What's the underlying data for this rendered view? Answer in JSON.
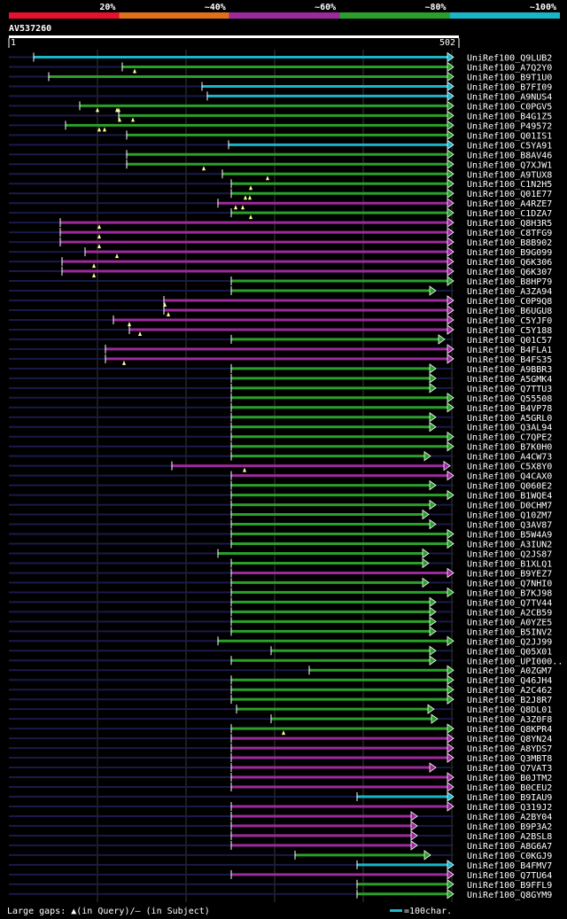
{
  "query": {
    "id": "AV537260",
    "length": 502,
    "start_label": "1",
    "end_label": "502"
  },
  "identity_scale": [
    {
      "label": "20%",
      "color": "#e8112d"
    },
    {
      "label": "~40%",
      "color": "#e0701e"
    },
    {
      "label": "~60%",
      "color": "#9c2a9c"
    },
    {
      "label": "~80%",
      "color": "#2aa02a"
    },
    {
      "label": "~100%",
      "color": "#1ab5c8"
    }
  ],
  "colors": {
    "cyan": "#1ab5c8",
    "green": "#2aa02a",
    "purple": "#9c2a9c",
    "axis_dark": "#1a1a4a",
    "grid": "#3a3a3a",
    "gap_marker": "#ffff99"
  },
  "legend": {
    "gaps_text": "Large gaps: ▲(in Query)/– (in Subject)",
    "scale_text": "=100char."
  },
  "hits": [
    {
      "label": "UniRef100_Q9LUB2",
      "start": 28,
      "end": 502,
      "color": "cyan",
      "gaps": []
    },
    {
      "label": "UniRef100_A7Q2Y0",
      "start": 128,
      "end": 502,
      "color": "green",
      "gaps": [
        142
      ]
    },
    {
      "label": "UniRef100_B9T1U0",
      "start": 45,
      "end": 502,
      "color": "green",
      "gaps": []
    },
    {
      "label": "UniRef100_B7FI09",
      "start": 218,
      "end": 502,
      "color": "cyan",
      "gaps": []
    },
    {
      "label": "UniRef100_A9NUS4",
      "start": 224,
      "end": 502,
      "color": "cyan",
      "gaps": []
    },
    {
      "label": "UniRef100_C0PGV5",
      "start": 80,
      "end": 502,
      "color": "green",
      "gaps": [
        100,
        122,
        124
      ]
    },
    {
      "label": "UniRef100_B4G1Z5",
      "start": 124,
      "end": 502,
      "color": "green",
      "gaps": [
        125,
        140
      ]
    },
    {
      "label": "UniRef100_P49572",
      "start": 64,
      "end": 502,
      "color": "green",
      "gaps": [
        102,
        108
      ]
    },
    {
      "label": "UniRef100_Q01IS1",
      "start": 133,
      "end": 502,
      "color": "green",
      "gaps": []
    },
    {
      "label": "UniRef100_C5YA91",
      "start": 248,
      "end": 502,
      "color": "cyan",
      "gaps": []
    },
    {
      "label": "UniRef100_B8AV46",
      "start": 133,
      "end": 502,
      "color": "green",
      "gaps": []
    },
    {
      "label": "UniRef100_Q7XJW1",
      "start": 133,
      "end": 502,
      "color": "green",
      "gaps": [
        220
      ]
    },
    {
      "label": "UniRef100_A9TUX8",
      "start": 241,
      "end": 502,
      "color": "green",
      "gaps": [
        292
      ]
    },
    {
      "label": "UniRef100_C1N2H5",
      "start": 251,
      "end": 502,
      "color": "green",
      "gaps": [
        273
      ]
    },
    {
      "label": "UniRef100_Q01E77",
      "start": 251,
      "end": 502,
      "color": "green",
      "gaps": [
        267,
        272
      ]
    },
    {
      "label": "UniRef100_A4RZE7",
      "start": 236,
      "end": 502,
      "color": "purple",
      "gaps": [
        256,
        264
      ]
    },
    {
      "label": "UniRef100_C1DZA7",
      "start": 251,
      "end": 502,
      "color": "green",
      "gaps": [
        273
      ]
    },
    {
      "label": "UniRef100_Q8H3R5",
      "start": 58,
      "end": 502,
      "color": "purple",
      "gaps": [
        102
      ]
    },
    {
      "label": "UniRef100_C8TFG9",
      "start": 58,
      "end": 502,
      "color": "purple",
      "gaps": [
        102
      ]
    },
    {
      "label": "UniRef100_B8B902",
      "start": 58,
      "end": 502,
      "color": "purple",
      "gaps": [
        102
      ]
    },
    {
      "label": "UniRef100_B9G099",
      "start": 86,
      "end": 502,
      "color": "purple",
      "gaps": [
        122
      ]
    },
    {
      "label": "UniRef100_Q6K306",
      "start": 60,
      "end": 502,
      "color": "purple",
      "gaps": [
        96
      ]
    },
    {
      "label": "UniRef100_Q6K307",
      "start": 60,
      "end": 502,
      "color": "purple",
      "gaps": [
        96
      ]
    },
    {
      "label": "UniRef100_B8HP79",
      "start": 251,
      "end": 502,
      "color": "green",
      "gaps": []
    },
    {
      "label": "UniRef100_A3ZA94",
      "start": 251,
      "end": 482,
      "color": "green",
      "gaps": []
    },
    {
      "label": "UniRef100_C0P9Q8",
      "start": 175,
      "end": 502,
      "color": "purple",
      "gaps": [
        176
      ]
    },
    {
      "label": "UniRef100_B6UGU8",
      "start": 175,
      "end": 502,
      "color": "purple",
      "gaps": [
        180
      ]
    },
    {
      "label": "UniRef100_C5YJF0",
      "start": 118,
      "end": 502,
      "color": "purple",
      "gaps": [
        136
      ]
    },
    {
      "label": "UniRef100_C5Y188",
      "start": 136,
      "end": 502,
      "color": "purple",
      "gaps": [
        148
      ]
    },
    {
      "label": "UniRef100_Q01C57",
      "start": 251,
      "end": 492,
      "color": "green",
      "gaps": []
    },
    {
      "label": "UniRef100_B4FLA1",
      "start": 109,
      "end": 502,
      "color": "purple",
      "gaps": []
    },
    {
      "label": "UniRef100_B4FS35",
      "start": 109,
      "end": 502,
      "color": "purple",
      "gaps": [
        130
      ]
    },
    {
      "label": "UniRef100_A9BBR3",
      "start": 251,
      "end": 482,
      "color": "green",
      "gaps": []
    },
    {
      "label": "UniRef100_A5GMK4",
      "start": 251,
      "end": 482,
      "color": "green",
      "gaps": []
    },
    {
      "label": "UniRef100_Q7TTU3",
      "start": 251,
      "end": 482,
      "color": "green",
      "gaps": []
    },
    {
      "label": "UniRef100_Q55508",
      "start": 251,
      "end": 502,
      "color": "green",
      "gaps": []
    },
    {
      "label": "UniRef100_B4VP78",
      "start": 251,
      "end": 502,
      "color": "green",
      "gaps": []
    },
    {
      "label": "UniRef100_A5GRL0",
      "start": 251,
      "end": 482,
      "color": "green",
      "gaps": []
    },
    {
      "label": "UniRef100_Q3AL94",
      "start": 251,
      "end": 482,
      "color": "green",
      "gaps": []
    },
    {
      "label": "UniRef100_C7QPE2",
      "start": 251,
      "end": 502,
      "color": "green",
      "gaps": []
    },
    {
      "label": "UniRef100_B7K0H0",
      "start": 251,
      "end": 502,
      "color": "green",
      "gaps": []
    },
    {
      "label": "UniRef100_A4CW73",
      "start": 251,
      "end": 476,
      "color": "green",
      "gaps": []
    },
    {
      "label": "UniRef100_C5X8Y0",
      "start": 184,
      "end": 498,
      "color": "purple",
      "gaps": [
        266
      ]
    },
    {
      "label": "UniRef100_Q4CAX0",
      "start": 251,
      "end": 502,
      "color": "purple",
      "gaps": []
    },
    {
      "label": "UniRef100_Q060E2",
      "start": 251,
      "end": 482,
      "color": "green",
      "gaps": []
    },
    {
      "label": "UniRef100_B1WQE4",
      "start": 251,
      "end": 502,
      "color": "green",
      "gaps": []
    },
    {
      "label": "UniRef100_D0CHM7",
      "start": 251,
      "end": 482,
      "color": "green",
      "gaps": []
    },
    {
      "label": "UniRef100_Q10ZM7",
      "start": 251,
      "end": 474,
      "color": "green",
      "gaps": []
    },
    {
      "label": "UniRef100_Q3AV87",
      "start": 251,
      "end": 482,
      "color": "green",
      "gaps": []
    },
    {
      "label": "UniRef100_B5W4A9",
      "start": 251,
      "end": 502,
      "color": "green",
      "gaps": []
    },
    {
      "label": "UniRef100_A3IUN2",
      "start": 251,
      "end": 502,
      "color": "green",
      "gaps": []
    },
    {
      "label": "UniRef100_Q2JS87",
      "start": 236,
      "end": 474,
      "color": "green",
      "gaps": []
    },
    {
      "label": "UniRef100_B1XLQ1",
      "start": 251,
      "end": 474,
      "color": "green",
      "gaps": []
    },
    {
      "label": "UniRef100_B9YEZ7",
      "start": 251,
      "end": 502,
      "color": "purple",
      "gaps": []
    },
    {
      "label": "UniRef100_Q7NHI0",
      "start": 251,
      "end": 474,
      "color": "green",
      "gaps": []
    },
    {
      "label": "UniRef100_B7KJ98",
      "start": 251,
      "end": 502,
      "color": "green",
      "gaps": []
    },
    {
      "label": "UniRef100_Q7TV44",
      "start": 251,
      "end": 482,
      "color": "green",
      "gaps": []
    },
    {
      "label": "UniRef100_A2CB59",
      "start": 251,
      "end": 482,
      "color": "green",
      "gaps": []
    },
    {
      "label": "UniRef100_A0YZE5",
      "start": 251,
      "end": 482,
      "color": "green",
      "gaps": []
    },
    {
      "label": "UniRef100_B5INV2",
      "start": 251,
      "end": 482,
      "color": "green",
      "gaps": []
    },
    {
      "label": "UniRef100_Q2JJ99",
      "start": 236,
      "end": 502,
      "color": "green",
      "gaps": []
    },
    {
      "label": "UniRef100_Q05X01",
      "start": 296,
      "end": 482,
      "color": "green",
      "gaps": []
    },
    {
      "label": "UniRef100_UPI000..",
      "start": 251,
      "end": 482,
      "color": "green",
      "gaps": []
    },
    {
      "label": "UniRef100_A0ZGM7",
      "start": 339,
      "end": 502,
      "color": "green",
      "gaps": []
    },
    {
      "label": "UniRef100_Q46JH4",
      "start": 251,
      "end": 502,
      "color": "green",
      "gaps": []
    },
    {
      "label": "UniRef100_A2C462",
      "start": 251,
      "end": 502,
      "color": "green",
      "gaps": []
    },
    {
      "label": "UniRef100_B2J8R7",
      "start": 251,
      "end": 502,
      "color": "green",
      "gaps": []
    },
    {
      "label": "UniRef100_Q8DL01",
      "start": 257,
      "end": 480,
      "color": "green",
      "gaps": []
    },
    {
      "label": "UniRef100_A3Z0F8",
      "start": 296,
      "end": 484,
      "color": "green",
      "gaps": []
    },
    {
      "label": "UniRef100_Q8KPR4",
      "start": 251,
      "end": 502,
      "color": "green",
      "gaps": [
        310
      ]
    },
    {
      "label": "UniRef100_Q8YN24",
      "start": 251,
      "end": 502,
      "color": "purple",
      "gaps": []
    },
    {
      "label": "UniRef100_A8YDS7",
      "start": 251,
      "end": 502,
      "color": "purple",
      "gaps": []
    },
    {
      "label": "UniRef100_Q3MBT8",
      "start": 251,
      "end": 502,
      "color": "purple",
      "gaps": []
    },
    {
      "label": "UniRef100_Q7VAT3",
      "start": 251,
      "end": 482,
      "color": "purple",
      "gaps": []
    },
    {
      "label": "UniRef100_B0JTM2",
      "start": 251,
      "end": 502,
      "color": "purple",
      "gaps": []
    },
    {
      "label": "UniRef100_B0CEU2",
      "start": 251,
      "end": 502,
      "color": "purple",
      "gaps": []
    },
    {
      "label": "UniRef100_B9IAU9",
      "start": 393,
      "end": 502,
      "color": "cyan",
      "gaps": []
    },
    {
      "label": "UniRef100_Q319J2",
      "start": 251,
      "end": 502,
      "color": "purple",
      "gaps": []
    },
    {
      "label": "UniRef100_A2BY04",
      "start": 251,
      "end": 461,
      "color": "purple",
      "gaps": []
    },
    {
      "label": "UniRef100_B9P3A2",
      "start": 251,
      "end": 461,
      "color": "purple",
      "gaps": []
    },
    {
      "label": "UniRef100_A2BSL8",
      "start": 251,
      "end": 461,
      "color": "purple",
      "gaps": []
    },
    {
      "label": "UniRef100_A8G6A7",
      "start": 251,
      "end": 461,
      "color": "purple",
      "gaps": []
    },
    {
      "label": "UniRef100_C0KGJ9",
      "start": 323,
      "end": 476,
      "color": "green",
      "gaps": []
    },
    {
      "label": "UniRef100_B4FMV7",
      "start": 393,
      "end": 502,
      "color": "cyan",
      "gaps": []
    },
    {
      "label": "UniRef100_Q7TU64",
      "start": 251,
      "end": 502,
      "color": "purple",
      "gaps": []
    },
    {
      "label": "UniRef100_B9FFL9",
      "start": 393,
      "end": 502,
      "color": "green",
      "gaps": []
    },
    {
      "label": "UniRef100_Q8GYM9",
      "start": 393,
      "end": 502,
      "color": "green",
      "gaps": []
    }
  ]
}
